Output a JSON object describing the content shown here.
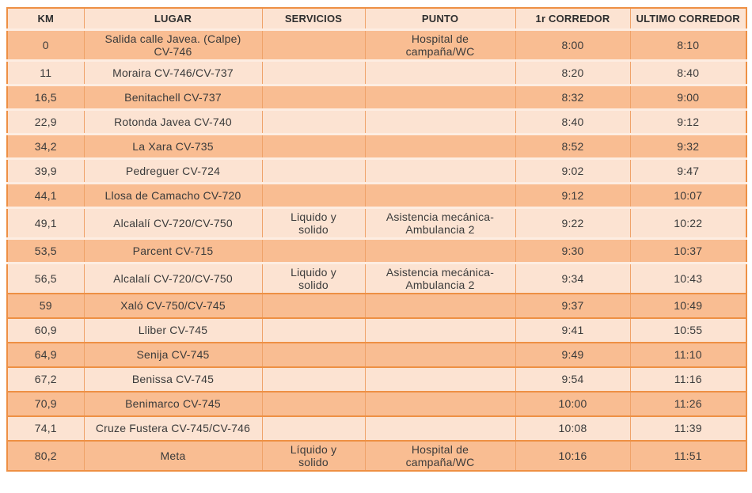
{
  "colors": {
    "row_dark": "#F9BD92",
    "row_light": "#FCE3D2",
    "grid_orange": "#EE9044",
    "grid_vertical": "#EFA269",
    "separator_light": "#FDEDE2",
    "text": "#3B3B3B"
  },
  "table": {
    "headers": [
      "KM",
      "LUGAR",
      "SERVICIOS",
      "PUNTO",
      "1r CORREDOR",
      "ULTIMO CORREDOR"
    ],
    "rows": [
      {
        "km": "0",
        "lugar": "Salida calle Javea. (Calpe)\nCV-746",
        "servicios": "",
        "punto": "Hospital de\ncampaña/WC",
        "primer_corredor": "8:00",
        "ultimo_corredor": "8:10"
      },
      {
        "km": "11",
        "lugar": "Moraira  CV-746/CV-737",
        "servicios": "",
        "punto": "",
        "primer_corredor": "8:20",
        "ultimo_corredor": "8:40"
      },
      {
        "km": "16,5",
        "lugar": "Benitachell CV-737",
        "servicios": "",
        "punto": "",
        "primer_corredor": "8:32",
        "ultimo_corredor": "9:00"
      },
      {
        "km": "22,9",
        "lugar": "Rotonda Javea CV-740",
        "servicios": "",
        "punto": "",
        "primer_corredor": "8:40",
        "ultimo_corredor": "9:12"
      },
      {
        "km": "34,2",
        "lugar": "La Xara CV-735",
        "servicios": "",
        "punto": "",
        "primer_corredor": "8:52",
        "ultimo_corredor": "9:32"
      },
      {
        "km": "39,9",
        "lugar": "Pedreguer CV-724",
        "servicios": "",
        "punto": "",
        "primer_corredor": "9:02",
        "ultimo_corredor": "9:47"
      },
      {
        "km": "44,1",
        "lugar": "Llosa de Camacho CV-720",
        "servicios": "",
        "punto": "",
        "primer_corredor": "9:12",
        "ultimo_corredor": "10:07"
      },
      {
        "km": "49,1",
        "lugar": "Alcalalí CV-720/CV-750",
        "servicios": "Liquido y\nsolido",
        "punto": "Asistencia mecánica-\nAmbulancia 2",
        "primer_corredor": "9:22",
        "ultimo_corredor": "10:22"
      },
      {
        "km": "53,5",
        "lugar": "Parcent CV-715",
        "servicios": "",
        "punto": "",
        "primer_corredor": "9:30",
        "ultimo_corredor": "10:37"
      },
      {
        "km": "56,5",
        "lugar": "Alcalalí CV-720/CV-750",
        "servicios": "Liquido y\nsolido",
        "punto": "Asistencia mecánica-\nAmbulancia 2",
        "primer_corredor": "9:34",
        "ultimo_corredor": "10:43"
      },
      {
        "km": "59",
        "lugar": "Xaló CV-750/CV-745",
        "servicios": "",
        "punto": "",
        "primer_corredor": "9:37",
        "ultimo_corredor": "10:49"
      },
      {
        "km": "60,9",
        "lugar": "Lliber CV-745",
        "servicios": "",
        "punto": "",
        "primer_corredor": "9:41",
        "ultimo_corredor": "10:55"
      },
      {
        "km": "64,9",
        "lugar": "Senija CV-745",
        "servicios": "",
        "punto": "",
        "primer_corredor": "9:49",
        "ultimo_corredor": "11:10"
      },
      {
        "km": "67,2",
        "lugar": "Benissa CV-745",
        "servicios": "",
        "punto": "",
        "primer_corredor": "9:54",
        "ultimo_corredor": "11:16"
      },
      {
        "km": "70,9",
        "lugar": "Benimarco CV-745",
        "servicios": "",
        "punto": "",
        "primer_corredor": "10:00",
        "ultimo_corredor": "11:26"
      },
      {
        "km": "74,1",
        "lugar": "Cruze Fustera CV-745/CV-746",
        "servicios": "",
        "punto": "",
        "primer_corredor": "10:08",
        "ultimo_corredor": "11:39"
      },
      {
        "km": "80,2",
        "lugar": "Meta",
        "servicios": "Líquido y\nsolido",
        "punto": "Hospital de\ncampaña/WC",
        "primer_corredor": "10:16",
        "ultimo_corredor": "11:51"
      }
    ]
  }
}
